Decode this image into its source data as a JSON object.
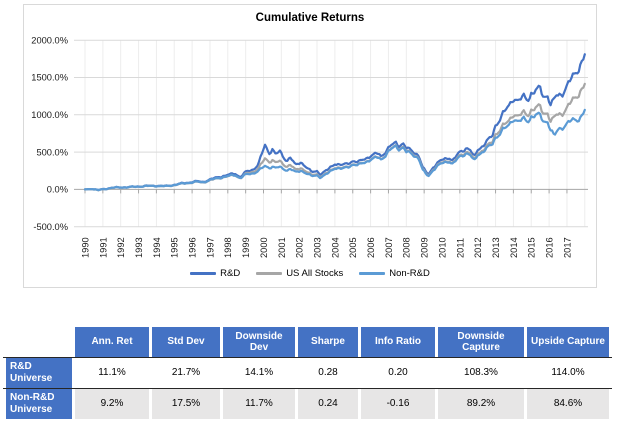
{
  "chart_data": {
    "type": "line",
    "title": "Cumulative Returns",
    "legend_position": "bottom",
    "grid": true,
    "y_axis": {
      "min": -500,
      "max": 2000,
      "tick_step": 500,
      "unit": "%",
      "tick_values": [
        2000,
        1500,
        1000,
        500,
        0,
        -500
      ],
      "tick_labels": [
        "2000.0%",
        "1500.0%",
        "1000.0%",
        "500.0%",
        "0.0%",
        "-500.0%"
      ]
    },
    "x_axis": {
      "start_year": 1990,
      "end_year": 2017,
      "labels": [
        "1990",
        "1991",
        "1992",
        "1993",
        "1994",
        "1995",
        "1996",
        "1997",
        "1998",
        "1999",
        "2000",
        "2001",
        "2002",
        "2003",
        "2004",
        "2005",
        "2006",
        "2007",
        "2008",
        "2009",
        "2010",
        "2011",
        "2012",
        "2013",
        "2014",
        "2015",
        "2016",
        "2017"
      ]
    },
    "series": [
      {
        "name": "R&D",
        "color": "#4472C4",
        "points": [
          [
            1990,
            0
          ],
          [
            1990.4,
            8
          ],
          [
            1990.75,
            -10
          ],
          [
            1991,
            3
          ],
          [
            1991.5,
            22
          ],
          [
            1992,
            28
          ],
          [
            1992.5,
            31
          ],
          [
            1993,
            41
          ],
          [
            1993.5,
            48
          ],
          [
            1994,
            50
          ],
          [
            1994.5,
            44
          ],
          [
            1995,
            62
          ],
          [
            1995.5,
            83
          ],
          [
            1996,
            100
          ],
          [
            1996.3,
            108
          ],
          [
            1996.6,
            101
          ],
          [
            1997,
            131
          ],
          [
            1997.5,
            168
          ],
          [
            1998,
            192
          ],
          [
            1998.4,
            215
          ],
          [
            1998.7,
            166
          ],
          [
            1999,
            231
          ],
          [
            1999.4,
            266
          ],
          [
            1999.7,
            330
          ],
          [
            2000.1,
            600
          ],
          [
            2000.3,
            482
          ],
          [
            2000.5,
            545
          ],
          [
            2000.7,
            462
          ],
          [
            2000.9,
            510
          ],
          [
            2001.1,
            440
          ],
          [
            2001.3,
            385
          ],
          [
            2001.5,
            430
          ],
          [
            2001.8,
            320
          ],
          [
            2002.1,
            368
          ],
          [
            2002.4,
            300
          ],
          [
            2002.7,
            228
          ],
          [
            2003,
            248
          ],
          [
            2003.2,
            205
          ],
          [
            2003.6,
            262
          ],
          [
            2004,
            348
          ],
          [
            2004.4,
            322
          ],
          [
            2004.7,
            345
          ],
          [
            2005,
            385
          ],
          [
            2005.3,
            362
          ],
          [
            2005.7,
            415
          ],
          [
            2006,
            450
          ],
          [
            2006.4,
            480
          ],
          [
            2006.6,
            446
          ],
          [
            2007,
            555
          ],
          [
            2007.4,
            625
          ],
          [
            2007.6,
            588
          ],
          [
            2007.8,
            625
          ],
          [
            2008,
            552
          ],
          [
            2008.4,
            505
          ],
          [
            2008.7,
            460
          ],
          [
            2008.9,
            300
          ],
          [
            2009.1,
            232
          ],
          [
            2009.25,
            205
          ],
          [
            2009.5,
            300
          ],
          [
            2009.8,
            362
          ],
          [
            2010,
            392
          ],
          [
            2010.4,
            432
          ],
          [
            2010.6,
            386
          ],
          [
            2011,
            497
          ],
          [
            2011.4,
            562
          ],
          [
            2011.6,
            522
          ],
          [
            2011.8,
            422
          ],
          [
            2012,
            532
          ],
          [
            2012.3,
            592
          ],
          [
            2012.5,
            642
          ],
          [
            2012.8,
            702
          ],
          [
            2013,
            860
          ],
          [
            2013.4,
            1010
          ],
          [
            2013.7,
            1090
          ],
          [
            2014,
            1235
          ],
          [
            2014.3,
            1185
          ],
          [
            2014.6,
            1235
          ],
          [
            2014.8,
            1205
          ],
          [
            2015,
            1295
          ],
          [
            2015.3,
            1325
          ],
          [
            2015.5,
            1345
          ],
          [
            2015.7,
            1235
          ],
          [
            2015.9,
            1285
          ],
          [
            2016.1,
            1125
          ],
          [
            2016.4,
            1245
          ],
          [
            2016.7,
            1285
          ],
          [
            2017,
            1385
          ],
          [
            2017.3,
            1490
          ],
          [
            2017.6,
            1610
          ],
          [
            2017.8,
            1705
          ],
          [
            2018,
            1795
          ]
        ]
      },
      {
        "name": "US All Stocks",
        "color": "#A6A6A6",
        "points": [
          [
            1990,
            0
          ],
          [
            1990.4,
            6
          ],
          [
            1990.75,
            -12
          ],
          [
            1991,
            0
          ],
          [
            1991.5,
            20
          ],
          [
            1992,
            26
          ],
          [
            1992.5,
            29
          ],
          [
            1993,
            38
          ],
          [
            1993.5,
            44
          ],
          [
            1994,
            46
          ],
          [
            1994.5,
            41
          ],
          [
            1995,
            57
          ],
          [
            1995.5,
            77
          ],
          [
            1996,
            92
          ],
          [
            1996.3,
            99
          ],
          [
            1996.6,
            93
          ],
          [
            1997,
            121
          ],
          [
            1997.5,
            152
          ],
          [
            1998,
            173
          ],
          [
            1998.4,
            193
          ],
          [
            1998.7,
            149
          ],
          [
            1999,
            206
          ],
          [
            1999.4,
            236
          ],
          [
            1999.7,
            276
          ],
          [
            2000.1,
            415
          ],
          [
            2000.3,
            371
          ],
          [
            2000.5,
            396
          ],
          [
            2000.7,
            356
          ],
          [
            2000.9,
            376
          ],
          [
            2001.1,
            340
          ],
          [
            2001.3,
            308
          ],
          [
            2001.5,
            331
          ],
          [
            2001.8,
            256
          ],
          [
            2002.1,
            291
          ],
          [
            2002.4,
            241
          ],
          [
            2002.7,
            187
          ],
          [
            2003,
            206
          ],
          [
            2003.2,
            171
          ],
          [
            2003.6,
            221
          ],
          [
            2004,
            299
          ],
          [
            2004.4,
            281
          ],
          [
            2004.7,
            301
          ],
          [
            2005,
            341
          ],
          [
            2005.3,
            326
          ],
          [
            2005.7,
            371
          ],
          [
            2006,
            406
          ],
          [
            2006.4,
            431
          ],
          [
            2006.6,
            406
          ],
          [
            2007,
            511
          ],
          [
            2007.4,
            581
          ],
          [
            2007.6,
            546
          ],
          [
            2007.8,
            581
          ],
          [
            2008,
            511
          ],
          [
            2008.4,
            471
          ],
          [
            2008.7,
            431
          ],
          [
            2008.9,
            276
          ],
          [
            2009.1,
            211
          ],
          [
            2009.25,
            186
          ],
          [
            2009.5,
            271
          ],
          [
            2009.8,
            331
          ],
          [
            2010,
            356
          ],
          [
            2010.4,
            391
          ],
          [
            2010.6,
            351
          ],
          [
            2011,
            451
          ],
          [
            2011.4,
            511
          ],
          [
            2011.6,
            476
          ],
          [
            2011.8,
            386
          ],
          [
            2012,
            481
          ],
          [
            2012.3,
            531
          ],
          [
            2012.5,
            576
          ],
          [
            2012.8,
            621
          ],
          [
            2013,
            741
          ],
          [
            2013.4,
            851
          ],
          [
            2013.7,
            891
          ],
          [
            2014,
            1021
          ],
          [
            2014.3,
            981
          ],
          [
            2014.6,
            1021
          ],
          [
            2014.8,
            1001
          ],
          [
            2015,
            1071
          ],
          [
            2015.3,
            1091
          ],
          [
            2015.5,
            1101
          ],
          [
            2015.7,
            1011
          ],
          [
            2015.9,
            1051
          ],
          [
            2016.1,
            901
          ],
          [
            2016.4,
            991
          ],
          [
            2016.7,
            1021
          ],
          [
            2017,
            1091
          ],
          [
            2017.3,
            1181
          ],
          [
            2017.6,
            1271
          ],
          [
            2017.8,
            1341
          ],
          [
            2018,
            1401
          ]
        ]
      },
      {
        "name": "Non-R&D",
        "color": "#5B9BD5",
        "points": [
          [
            1990,
            0
          ],
          [
            1990.4,
            7
          ],
          [
            1990.75,
            -11
          ],
          [
            1991,
            1
          ],
          [
            1991.5,
            21
          ],
          [
            1992,
            27
          ],
          [
            1992.5,
            30
          ],
          [
            1993,
            39
          ],
          [
            1993.5,
            45
          ],
          [
            1994,
            47
          ],
          [
            1994.5,
            42
          ],
          [
            1995,
            59
          ],
          [
            1995.5,
            79
          ],
          [
            1996,
            95
          ],
          [
            1996.3,
            102
          ],
          [
            1996.6,
            96
          ],
          [
            1997,
            124
          ],
          [
            1997.5,
            156
          ],
          [
            1998,
            176
          ],
          [
            1998.4,
            194
          ],
          [
            1998.7,
            152
          ],
          [
            1999,
            196
          ],
          [
            1999.4,
            216
          ],
          [
            1999.7,
            246
          ],
          [
            2000.1,
            312
          ],
          [
            2000.3,
            292
          ],
          [
            2000.5,
            306
          ],
          [
            2000.7,
            286
          ],
          [
            2000.9,
            296
          ],
          [
            2001.1,
            280
          ],
          [
            2001.3,
            256
          ],
          [
            2001.5,
            276
          ],
          [
            2001.8,
            226
          ],
          [
            2002.1,
            256
          ],
          [
            2002.4,
            216
          ],
          [
            2002.7,
            174
          ],
          [
            2003,
            191
          ],
          [
            2003.2,
            161
          ],
          [
            2003.6,
            211
          ],
          [
            2004,
            291
          ],
          [
            2004.4,
            273
          ],
          [
            2004.7,
            296
          ],
          [
            2005,
            336
          ],
          [
            2005.3,
            321
          ],
          [
            2005.7,
            366
          ],
          [
            2006,
            401
          ],
          [
            2006.4,
            426
          ],
          [
            2006.6,
            401
          ],
          [
            2007,
            506
          ],
          [
            2007.4,
            576
          ],
          [
            2007.6,
            541
          ],
          [
            2007.8,
            571
          ],
          [
            2008,
            501
          ],
          [
            2008.4,
            461
          ],
          [
            2008.7,
            421
          ],
          [
            2008.9,
            266
          ],
          [
            2009.1,
            201
          ],
          [
            2009.25,
            179
          ],
          [
            2009.5,
            261
          ],
          [
            2009.8,
            321
          ],
          [
            2010,
            346
          ],
          [
            2010.4,
            381
          ],
          [
            2010.6,
            341
          ],
          [
            2011,
            436
          ],
          [
            2011.4,
            491
          ],
          [
            2011.6,
            456
          ],
          [
            2011.8,
            371
          ],
          [
            2012,
            461
          ],
          [
            2012.3,
            511
          ],
          [
            2012.5,
            551
          ],
          [
            2012.8,
            591
          ],
          [
            2013,
            696
          ],
          [
            2013.4,
            796
          ],
          [
            2013.7,
            836
          ],
          [
            2014,
            956
          ],
          [
            2014.3,
            906
          ],
          [
            2014.6,
            936
          ],
          [
            2014.8,
            916
          ],
          [
            2015,
            981
          ],
          [
            2015.3,
            991
          ],
          [
            2015.5,
            986
          ],
          [
            2015.7,
            906
          ],
          [
            2015.9,
            931
          ],
          [
            2016.1,
            786
          ],
          [
            2016.3,
            706
          ],
          [
            2016.5,
            801
          ],
          [
            2016.8,
            846
          ],
          [
            2017,
            881
          ],
          [
            2017.3,
            921
          ],
          [
            2017.6,
            941
          ],
          [
            2017.8,
            981
          ],
          [
            2018,
            1056
          ]
        ]
      }
    ],
    "colors": {
      "gridline": "#D9D9D9",
      "minor_vertical_gridline": "#EDEDED",
      "axis_line": "#A6A6A6",
      "chart_border": "#D9D9D9",
      "axis_text": "#1A1A1A"
    }
  },
  "table": {
    "header_bg": "#4472C4",
    "header_text_color": "#FFFFFF",
    "row_label_bg": "#4472C4",
    "row_bg": "#FFFFFF",
    "alt_row_bg": "#E7E6E6",
    "columns": [
      "",
      "Ann. Ret",
      "Std Dev",
      "Downside Dev",
      "Sharpe",
      "Info Ratio",
      "Downside Capture",
      "Upside Capture"
    ],
    "rows": [
      {
        "label": "R&D Universe",
        "values": [
          "11.1%",
          "21.7%",
          "14.1%",
          "0.28",
          "0.20",
          "108.3%",
          "114.0%"
        ]
      },
      {
        "label": "Non-R&D Universe",
        "values": [
          "9.2%",
          "17.5%",
          "11.7%",
          "0.24",
          "-0.16",
          "89.2%",
          "84.6%"
        ]
      }
    ]
  }
}
